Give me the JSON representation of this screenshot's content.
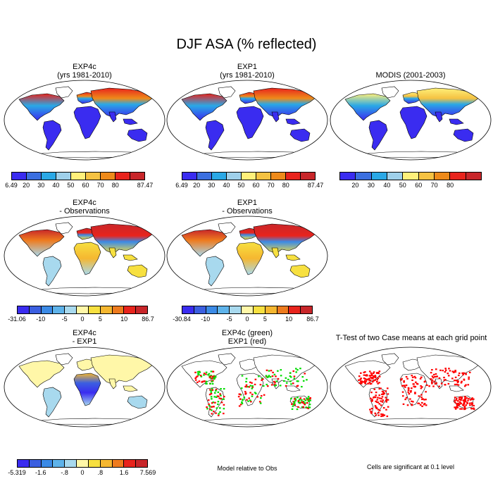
{
  "title": "DJF ASA (% reflected)",
  "panels": [
    {
      "id": "exp4c",
      "title1": "EXP4c",
      "title2": "(yrs 1981-2010)",
      "style": "albedo"
    },
    {
      "id": "exp1",
      "title1": "EXP1",
      "title2": "(yrs 1981-2010)",
      "style": "albedo"
    },
    {
      "id": "modis",
      "title1": "MODIS (2001-2003)",
      "title2": "",
      "style": "albedo-modis"
    },
    {
      "id": "exp4c-obs",
      "title1": "EXP4c",
      "title2": "- Observations",
      "style": "diff"
    },
    {
      "id": "exp1-obs",
      "title1": "EXP1",
      "title2": "- Observations",
      "style": "diff"
    },
    {
      "id": "exp4c-exp1",
      "title1": "EXP4c",
      "title2": "- EXP1",
      "style": "diff-small"
    },
    {
      "id": "green-red",
      "title1": "EXP4c (green)",
      "title2": "EXP1 (red)",
      "style": "greenred"
    },
    {
      "id": "ttest",
      "title1": "T-Test of two Case means at each grid point",
      "title2": "",
      "style": "ttest"
    }
  ],
  "colorbars": {
    "albedo": {
      "colors": [
        "#3a2cf0",
        "#3b6fe0",
        "#2aa8e6",
        "#9fd0ea",
        "#fff07a",
        "#f5c242",
        "#ee8a1a",
        "#e8241d",
        "#c8262a"
      ],
      "labels": [
        "6.49",
        "20",
        "30",
        "40",
        "50",
        "60",
        "70",
        "80",
        "87.47"
      ]
    },
    "modis": {
      "colors": [
        "#3a2cf0",
        "#3b6fe0",
        "#2aa8e6",
        "#9fd0ea",
        "#fff07a",
        "#f5c242",
        "#ee8a1a",
        "#e8241d",
        "#c8262a"
      ],
      "labels": [
        "20",
        "30",
        "40",
        "50",
        "60",
        "70",
        "80"
      ]
    },
    "diff1": {
      "colors": [
        "#3a2cf0",
        "#3b5fe0",
        "#3b8ae6",
        "#5eb3ea",
        "#a8d9ee",
        "#fff7a8",
        "#f7e040",
        "#f5b730",
        "#ee7b1e",
        "#e8241d",
        "#c8262a"
      ],
      "labels": [
        "-31.06",
        "-10",
        "-5",
        "0",
        "5",
        "10",
        "86.7"
      ]
    },
    "diff2": {
      "colors": [
        "#3a2cf0",
        "#3b5fe0",
        "#3b8ae6",
        "#5eb3ea",
        "#a8d9ee",
        "#fff7a8",
        "#f7e040",
        "#f5b730",
        "#ee7b1e",
        "#e8241d",
        "#c8262a"
      ],
      "labels": [
        "-30.84",
        "-10",
        "-5",
        "0",
        "5",
        "10",
        "86.7"
      ]
    },
    "diff3": {
      "colors": [
        "#3a2cf0",
        "#3b5fe0",
        "#3b8ae6",
        "#5eb3ea",
        "#a8d9ee",
        "#fff7a8",
        "#f7e040",
        "#f5b730",
        "#ee7b1e",
        "#e8241d",
        "#c8262a"
      ],
      "labels": [
        "-5.319",
        "-1.6",
        "-.8",
        "0",
        ".8",
        "1.6",
        "7.569"
      ]
    }
  },
  "notes": {
    "model_relative": "Model relative to Obs",
    "significant": "Cells are significant at 0.1 level"
  }
}
